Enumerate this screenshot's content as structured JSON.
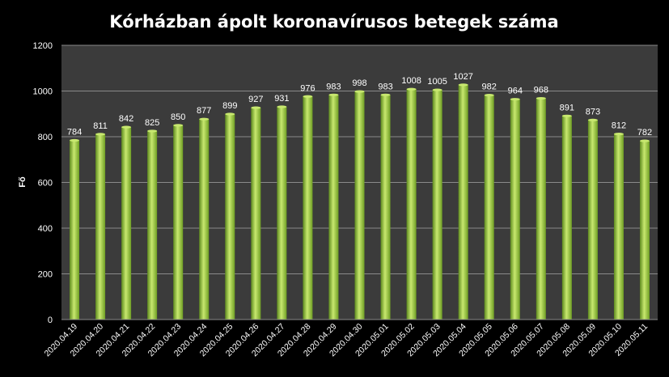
{
  "chart_data": {
    "type": "bar",
    "title": "Kórházban ápolt koronavírusos betegek száma",
    "xlabel": "",
    "ylabel": "Fő",
    "ylim": [
      0,
      1200
    ],
    "yticks": [
      0,
      200,
      400,
      600,
      800,
      1000,
      1200
    ],
    "grid": true,
    "legend": "none",
    "categories": [
      "2020.04.19",
      "2020.04.20",
      "2020.04.21",
      "2020.04.22",
      "2020.04.23",
      "2020.04.24",
      "2020.04.25",
      "2020.04.26",
      "2020.04.27",
      "2020.04.28",
      "2020.04.29",
      "2020.04.30",
      "2020.05.01",
      "2020.05.02",
      "2020.05.03",
      "2020.05.04",
      "2020.05.05",
      "2020.05.06",
      "2020.05.07",
      "2020.05.08",
      "2020.05.09",
      "2020.05.10",
      "2020.05.11"
    ],
    "values": [
      784,
      811,
      842,
      825,
      850,
      877,
      899,
      927,
      931,
      976,
      983,
      998,
      983,
      1008,
      1005,
      1027,
      982,
      964,
      968,
      891,
      873,
      812,
      782
    ],
    "colors": {
      "background": "#000000",
      "plot": "#3b3b3b",
      "bar": "#8fc43a",
      "bar_light": "#c8e86f",
      "bar_dark": "#5d8a1e",
      "text": "#ffffff",
      "grid": "#8a8a8a"
    }
  }
}
